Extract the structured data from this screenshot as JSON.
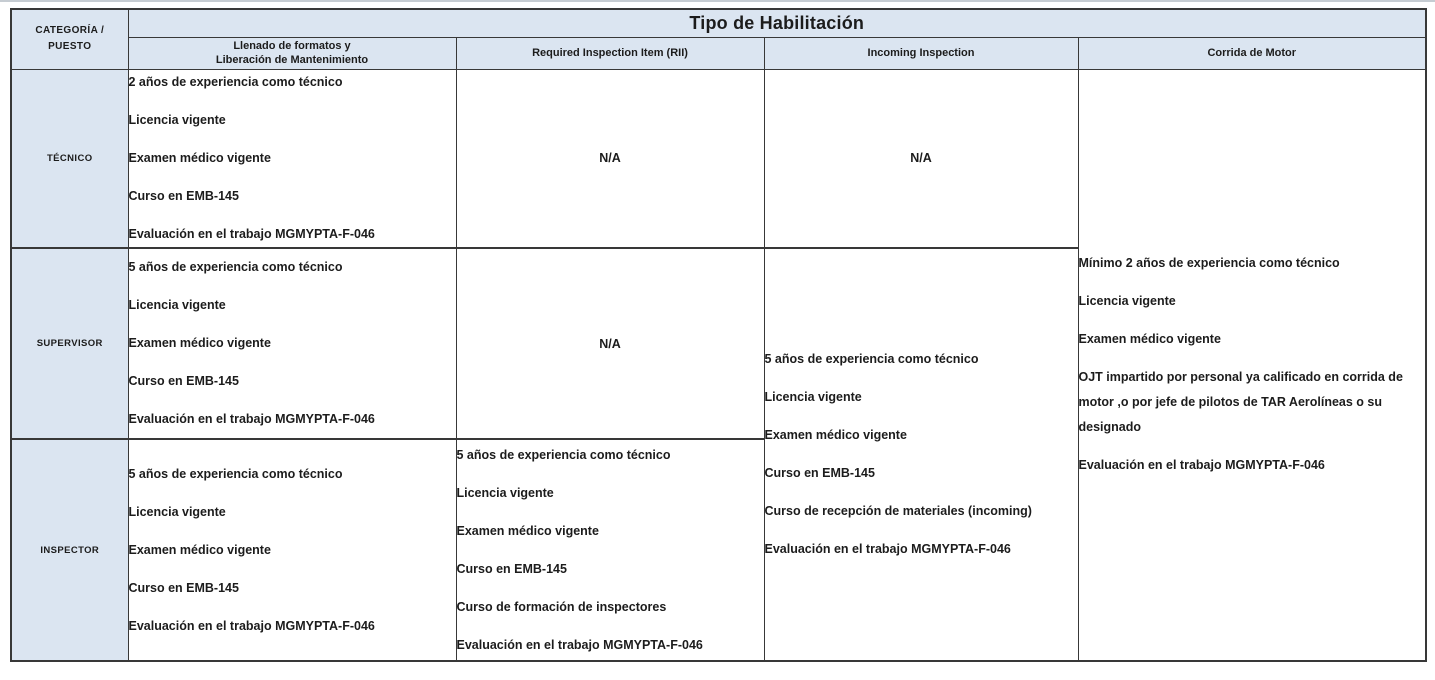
{
  "header": {
    "corner": "CATEGORÍA /\nPUESTO",
    "title": "Tipo de Habilitación",
    "columns": [
      "Llenado de formatos y\nLiberación de Mantenimiento",
      "Required Inspection Item (RII)",
      "Incoming Inspection",
      "Corrida de Motor"
    ]
  },
  "rows": [
    {
      "label": "TÉCNICO",
      "llenado": [
        "2 años de experiencia como técnico",
        "Licencia vigente",
        "Examen médico vigente",
        "Curso en EMB-145",
        "Evaluación en el trabajo MGMYPTA-F-046"
      ],
      "rii": "N/A",
      "incoming": "N/A"
    },
    {
      "label": "SUPERVISOR",
      "llenado": [
        "5 años de experiencia como técnico",
        "Licencia vigente",
        "Examen médico vigente",
        "Curso en EMB-145",
        "Evaluación en el trabajo MGMYPTA-F-046"
      ],
      "rii": "N/A"
    },
    {
      "label": "INSPECTOR",
      "llenado": [
        "5 años de experiencia como técnico",
        "Licencia vigente",
        "Examen médico vigente",
        "Curso en EMB-145",
        "Evaluación en el trabajo MGMYPTA-F-046"
      ],
      "rii": [
        "5 años de experiencia como técnico",
        "Licencia vigente",
        "Examen médico vigente",
        "Curso en EMB-145",
        "Curso de formación de inspectores",
        "Evaluación en el trabajo MGMYPTA-F-046"
      ]
    }
  ],
  "merged": {
    "incoming_supervisor_inspector": [
      "5 años de experiencia como técnico",
      "Licencia vigente",
      "Examen médico vigente",
      "Curso en EMB-145",
      "Curso de recepción de materiales (incoming)",
      "Evaluación en el trabajo MGMYPTA-F-046"
    ],
    "corrida_de_motor_all": [
      "Mínimo 2 años de experiencia como técnico",
      "Licencia vigente",
      "Examen médico vigente",
      "OJT impartido por personal ya calificado en corrida de motor ,o por jefe de pilotos de TAR Aerolíneas o su designado",
      "Evaluación en el trabajo MGMYPTA-F-046"
    ]
  },
  "colors": {
    "header_fill": "#dbe5f1",
    "border": "#383838",
    "text": "#1c1c1c",
    "page_background": "#ffffff",
    "top_rule": "#c6ccd2"
  }
}
